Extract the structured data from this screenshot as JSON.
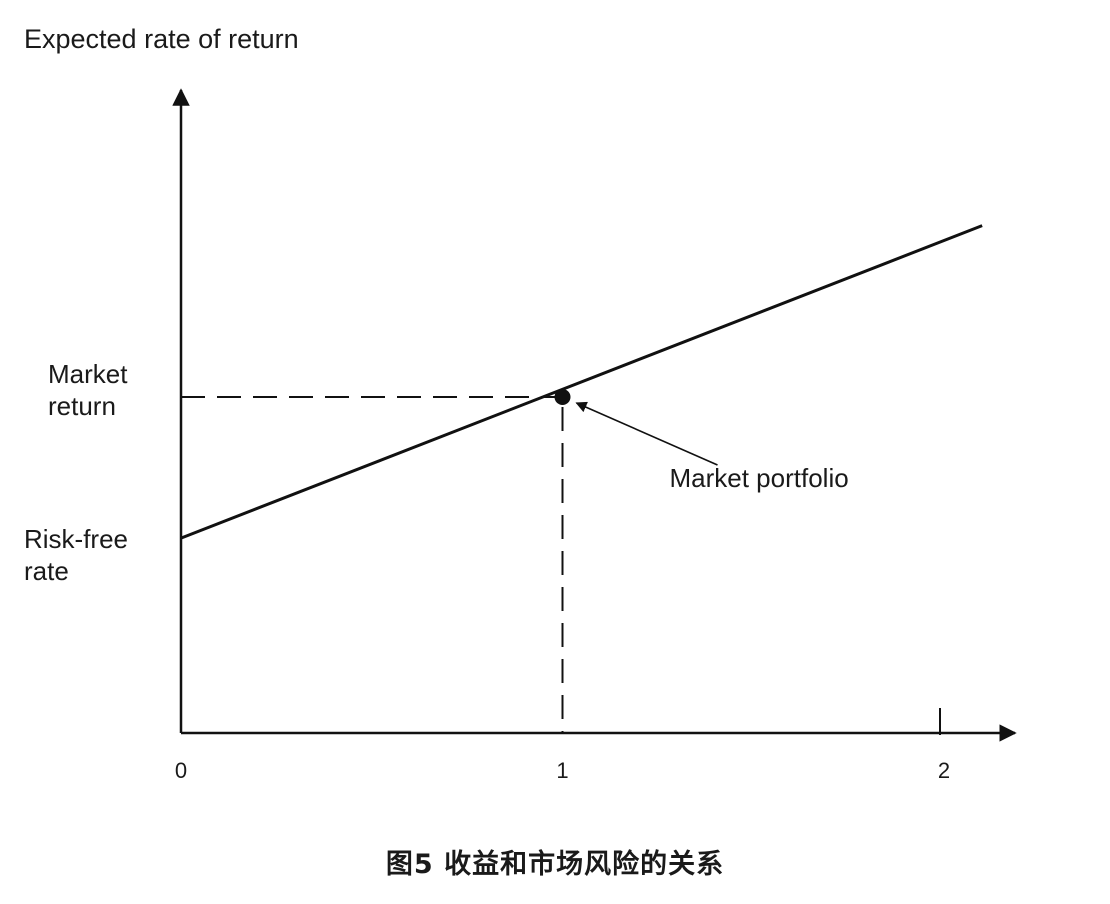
{
  "chart_data": {
    "type": "line",
    "ylabel": "Expected rate of return",
    "xlabel": "",
    "x_ticks": [
      "0",
      "1",
      "2"
    ],
    "xlim": [
      0,
      2.1
    ],
    "ylim": [
      0,
      1.5
    ],
    "series": [
      {
        "x": [
          0,
          2.1
        ],
        "y": [
          0.58,
          1.51
        ]
      }
    ],
    "y_labels": {
      "market_return": {
        "value": 1.0,
        "lines": [
          "Market",
          "return"
        ]
      },
      "risk_free_rate": {
        "value": 0.58,
        "lines": [
          "Risk-free",
          "rate"
        ]
      }
    },
    "highlight_point": {
      "x": 1,
      "y": 1.0
    },
    "annotation": {
      "text": "Market portfolio"
    },
    "grid": false
  },
  "caption": "图5  收益和市场风险的关系"
}
